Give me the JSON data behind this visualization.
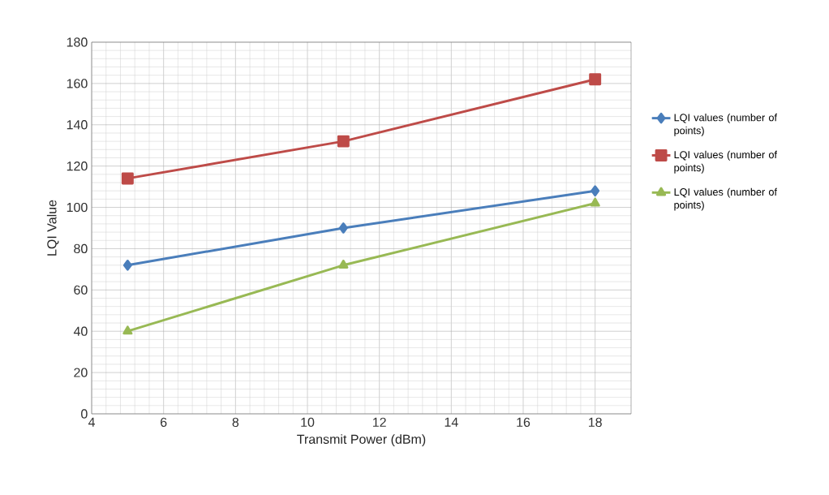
{
  "chart_data": {
    "type": "line",
    "xlabel": "Transmit Power (dBm)",
    "ylabel": "LQI Value",
    "x": [
      5,
      11,
      18
    ],
    "series": [
      {
        "name": "LQI values (number of points)",
        "color": "#4a7ebb",
        "values": [
          72,
          90,
          108
        ],
        "marker": "diamond"
      },
      {
        "name": "LQI values (number of points)",
        "color": "#be4b48",
        "values": [
          114,
          132,
          162
        ],
        "marker": "square"
      },
      {
        "name": "LQI values (number of points)",
        "color": "#98b954",
        "values": [
          40,
          72,
          102
        ],
        "marker": "triangle"
      }
    ],
    "xlim": [
      4,
      19
    ],
    "xticks": [
      4,
      6,
      8,
      10,
      12,
      14,
      16,
      18
    ],
    "ylim": [
      0,
      180
    ],
    "yticks": [
      0,
      20,
      40,
      60,
      80,
      100,
      120,
      140,
      160,
      180
    ],
    "grid": true,
    "legend": "right"
  }
}
